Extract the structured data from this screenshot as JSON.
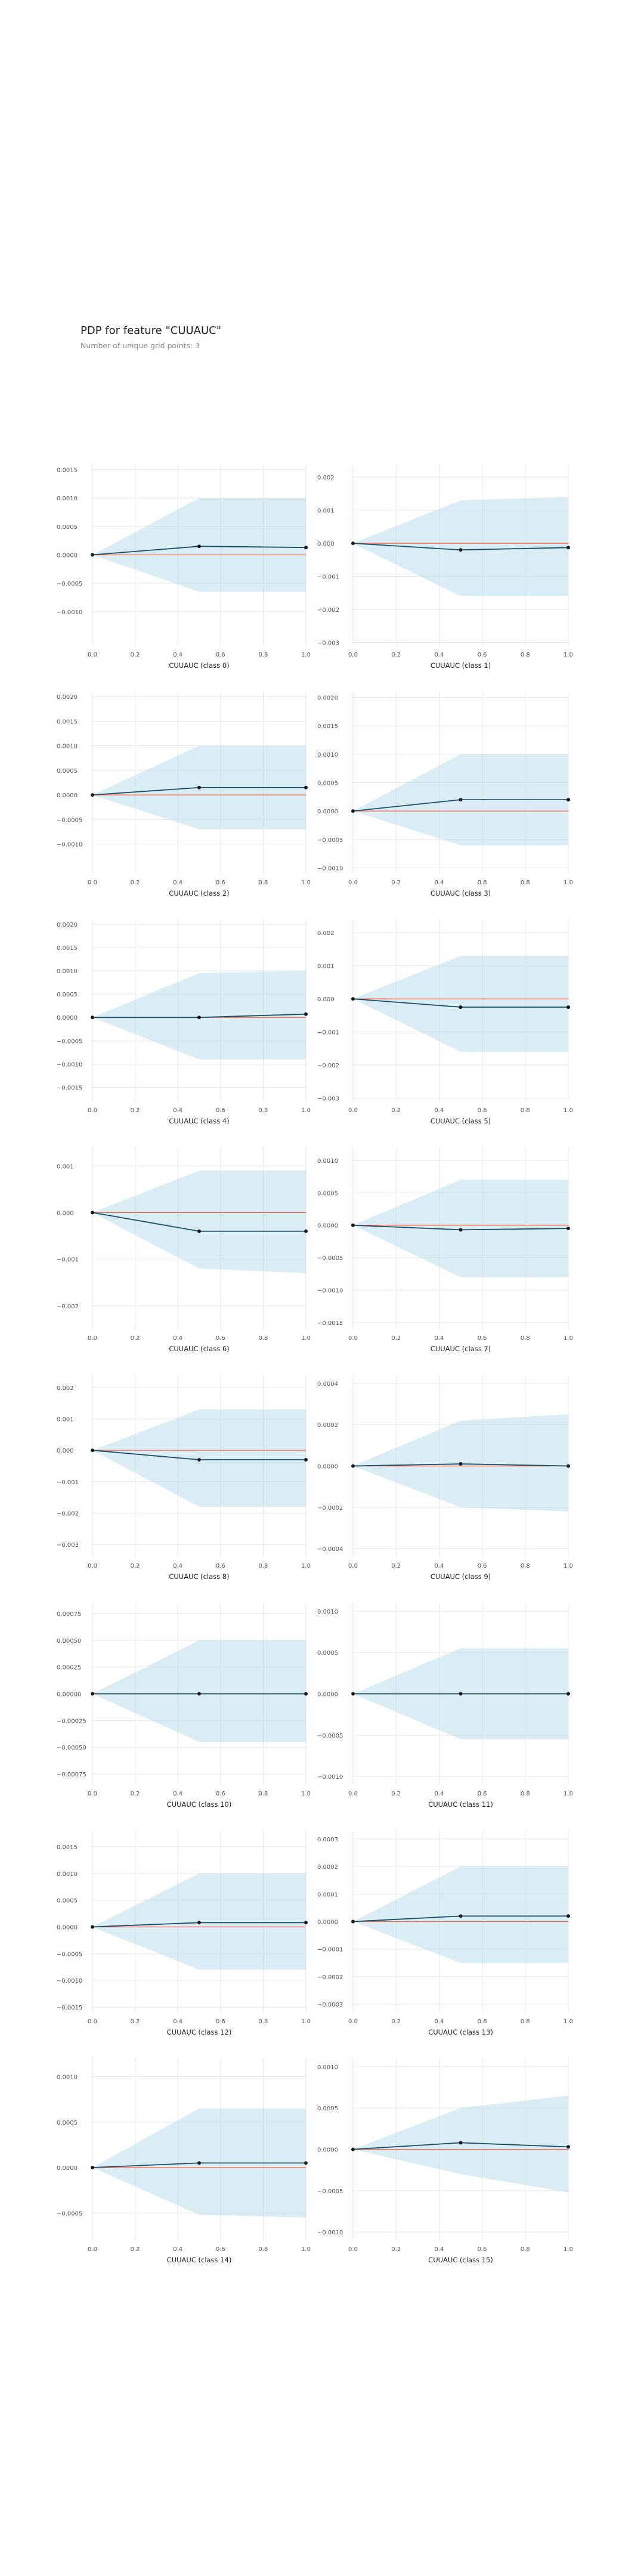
{
  "header": {
    "title": "PDP for feature \"CUUAUC\"",
    "subtitle": "Number of unique grid points: 3"
  },
  "colors": {
    "band": "#add8e6",
    "line": "#1a4e66",
    "marker": "#1a1a1a",
    "baseline": "#ff6347",
    "grid": "#e6e6e6"
  },
  "chart_data": [
    {
      "type": "line",
      "xlabel": "CUUAUC (class 0)",
      "x": [
        0,
        0.5,
        1
      ],
      "values": [
        0,
        0.00015,
        0.00013
      ],
      "upper": [
        0,
        0.001,
        0.001
      ],
      "lower": [
        0,
        -0.00065,
        -0.00065
      ],
      "ylim": [
        -0.0016,
        0.0016
      ],
      "xticks": [
        "0.0",
        "0.2",
        "0.4",
        "0.6",
        "0.8",
        "1.0"
      ],
      "yticks": [
        -0.001,
        -0.0005,
        0,
        0.0005,
        0.001,
        0.0015
      ],
      "yticklabels": [
        "−0.0010",
        "−0.0005",
        "0.0000",
        "0.0005",
        "0.0010",
        "0.0015"
      ],
      "baseline_visible": true
    },
    {
      "type": "line",
      "xlabel": "CUUAUC (class 1)",
      "x": [
        0,
        0.5,
        1
      ],
      "values": [
        0,
        -0.0002,
        -0.00013
      ],
      "upper": [
        0,
        0.0013,
        0.0014
      ],
      "lower": [
        0,
        -0.0016,
        -0.0016
      ],
      "ylim": [
        -0.0031,
        0.0024
      ],
      "xticks": [
        "0.0",
        "0.2",
        "0.4",
        "0.6",
        "0.8",
        "1.0"
      ],
      "yticks": [
        -0.003,
        -0.002,
        -0.001,
        0,
        0.001,
        0.002
      ],
      "yticklabels": [
        "−0.003",
        "−0.002",
        "−0.001",
        "0.000",
        "0.001",
        "0.002"
      ],
      "baseline_visible": true
    },
    {
      "type": "line",
      "xlabel": "CUUAUC (class 2)",
      "x": [
        0,
        0.5,
        1
      ],
      "values": [
        0,
        0.00015,
        0.00015
      ],
      "upper": [
        0,
        0.001,
        0.001
      ],
      "lower": [
        0,
        -0.0007,
        -0.0007
      ],
      "ylim": [
        -0.0016,
        0.0021
      ],
      "xticks": [
        "0.0",
        "0.2",
        "0.4",
        "0.6",
        "0.8",
        "1.0"
      ],
      "yticks": [
        -0.001,
        -0.0005,
        0,
        0.0005,
        0.001,
        0.0015,
        0.002
      ],
      "yticklabels": [
        "−0.0010",
        "−0.0005",
        "0.0000",
        "0.0005",
        "0.0010",
        "0.0015",
        "0.0020"
      ],
      "baseline_visible": true
    },
    {
      "type": "line",
      "xlabel": "CUUAUC (class 3)",
      "x": [
        0,
        0.5,
        1
      ],
      "values": [
        0,
        0.0002,
        0.0002
      ],
      "upper": [
        0,
        0.001,
        0.001
      ],
      "lower": [
        0,
        -0.0006,
        -0.0006
      ],
      "ylim": [
        -0.0011,
        0.0021
      ],
      "xticks": [
        "0.0",
        "0.2",
        "0.4",
        "0.6",
        "0.8",
        "1.0"
      ],
      "yticks": [
        -0.001,
        -0.0005,
        0,
        0.0005,
        0.001,
        0.0015,
        0.002
      ],
      "yticklabels": [
        "−0.0010",
        "−0.0005",
        "0.0000",
        "0.0005",
        "0.0010",
        "0.0015",
        "0.0020"
      ],
      "baseline_visible": true
    },
    {
      "type": "line",
      "xlabel": "CUUAUC (class 4)",
      "x": [
        0,
        0.5,
        1
      ],
      "values": [
        0,
        0,
        7e-05
      ],
      "upper": [
        0,
        0.00095,
        0.001
      ],
      "lower": [
        0,
        -0.0009,
        -0.0009
      ],
      "ylim": [
        -0.0018,
        0.0021
      ],
      "xticks": [
        "0.0",
        "0.2",
        "0.4",
        "0.6",
        "0.8",
        "1.0"
      ],
      "yticks": [
        -0.0015,
        -0.001,
        -0.0005,
        0,
        0.0005,
        0.001,
        0.0015,
        0.002
      ],
      "yticklabels": [
        "−0.0015",
        "−0.0010",
        "−0.0005",
        "0.0000",
        "0.0005",
        "0.0010",
        "0.0015",
        "0.0020"
      ],
      "baseline_visible": true
    },
    {
      "type": "line",
      "xlabel": "CUUAUC (class 5)",
      "x": [
        0,
        0.5,
        1
      ],
      "values": [
        0,
        -0.00025,
        -0.00025
      ],
      "upper": [
        0,
        0.0013,
        0.0013
      ],
      "lower": [
        0,
        -0.0016,
        -0.0016
      ],
      "ylim": [
        -0.0031,
        0.0024
      ],
      "xticks": [
        "0.0",
        "0.2",
        "0.4",
        "0.6",
        "0.8",
        "1.0"
      ],
      "yticks": [
        -0.003,
        -0.002,
        -0.001,
        0,
        0.001,
        0.002
      ],
      "yticklabels": [
        "−0.003",
        "−0.002",
        "−0.001",
        "0.000",
        "0.001",
        "0.002"
      ],
      "baseline_visible": true
    },
    {
      "type": "line",
      "xlabel": "CUUAUC (class 6)",
      "x": [
        0,
        0.5,
        1
      ],
      "values": [
        0,
        -0.0004,
        -0.0004
      ],
      "upper": [
        0,
        0.0009,
        0.0009
      ],
      "lower": [
        0,
        -0.0012,
        -0.0013
      ],
      "ylim": [
        -0.0025,
        0.0014
      ],
      "xticks": [
        "0.0",
        "0.2",
        "0.4",
        "0.6",
        "0.8",
        "1.0"
      ],
      "yticks": [
        -0.002,
        -0.001,
        0,
        0.001
      ],
      "yticklabels": [
        "−0.002",
        "−0.001",
        "0.000",
        "0.001"
      ],
      "baseline_visible": true
    },
    {
      "type": "line",
      "xlabel": "CUUAUC (class 7)",
      "x": [
        0,
        0.5,
        1
      ],
      "values": [
        0,
        -7e-05,
        -5e-05
      ],
      "upper": [
        0,
        0.0007,
        0.0007
      ],
      "lower": [
        0,
        -0.0008,
        -0.0008
      ],
      "ylim": [
        -0.0016,
        0.0012
      ],
      "xticks": [
        "0.0",
        "0.2",
        "0.4",
        "0.6",
        "0.8",
        "1.0"
      ],
      "yticks": [
        -0.0015,
        -0.001,
        -0.0005,
        0,
        0.0005,
        0.001
      ],
      "yticklabels": [
        "−0.0015",
        "−0.0010",
        "−0.0005",
        "0.0000",
        "0.0005",
        "0.0010"
      ],
      "baseline_visible": true
    },
    {
      "type": "line",
      "xlabel": "CUUAUC (class 8)",
      "x": [
        0,
        0.5,
        1
      ],
      "values": [
        0,
        -0.0003,
        -0.0003
      ],
      "upper": [
        0,
        0.0013,
        0.0013
      ],
      "lower": [
        0,
        -0.0018,
        -0.0018
      ],
      "ylim": [
        -0.0034,
        0.0024
      ],
      "xticks": [
        "0.0",
        "0.2",
        "0.4",
        "0.6",
        "0.8",
        "1.0"
      ],
      "yticks": [
        -0.003,
        -0.002,
        -0.001,
        0,
        0.001,
        0.002
      ],
      "yticklabels": [
        "−0.003",
        "−0.002",
        "−0.001",
        "0.000",
        "0.001",
        "0.002"
      ],
      "baseline_visible": true
    },
    {
      "type": "line",
      "xlabel": "CUUAUC (class 9)",
      "x": [
        0,
        0.5,
        1
      ],
      "values": [
        0,
        1e-05,
        0
      ],
      "upper": [
        0,
        0.00022,
        0.00025
      ],
      "lower": [
        0,
        -0.0002,
        -0.00022
      ],
      "ylim": [
        -0.00044,
        0.00044
      ],
      "xticks": [
        "0.0",
        "0.2",
        "0.4",
        "0.6",
        "0.8",
        "1.0"
      ],
      "yticks": [
        -0.0004,
        -0.0002,
        0,
        0.0002,
        0.0004
      ],
      "yticklabels": [
        "−0.0004",
        "−0.0002",
        "0.0000",
        "0.0002",
        "0.0004"
      ],
      "baseline_visible": true
    },
    {
      "type": "line",
      "xlabel": "CUUAUC (class 10)",
      "x": [
        0,
        0.5,
        1
      ],
      "values": [
        0,
        0,
        0
      ],
      "upper": [
        0,
        0.0005,
        0.0005
      ],
      "lower": [
        0,
        -0.00045,
        -0.00045
      ],
      "ylim": [
        -0.00085,
        0.00085
      ],
      "xticks": [
        "0.0",
        "0.2",
        "0.4",
        "0.6",
        "0.8",
        "1.0"
      ],
      "yticks": [
        -0.00075,
        -0.0005,
        -0.00025,
        0,
        0.00025,
        0.0005,
        0.00075
      ],
      "yticklabels": [
        "−0.00075",
        "−0.00050",
        "−0.00025",
        "0.00000",
        "0.00025",
        "0.00050",
        "0.00075"
      ],
      "baseline_visible": true
    },
    {
      "type": "line",
      "xlabel": "CUUAUC (class 11)",
      "x": [
        0,
        0.5,
        1
      ],
      "values": [
        0,
        0,
        0
      ],
      "upper": [
        0,
        0.00055,
        0.00055
      ],
      "lower": [
        0,
        -0.00055,
        -0.00055
      ],
      "ylim": [
        -0.0011,
        0.0011
      ],
      "xticks": [
        "0.0",
        "0.2",
        "0.4",
        "0.6",
        "0.8",
        "1.0"
      ],
      "yticks": [
        -0.001,
        -0.0005,
        0,
        0.0005,
        0.001
      ],
      "yticklabels": [
        "−0.0010",
        "−0.0005",
        "0.0000",
        "0.0005",
        "0.0010"
      ],
      "baseline_visible": true
    },
    {
      "type": "line",
      "xlabel": "CUUAUC (class 12)",
      "x": [
        0,
        0.5,
        1
      ],
      "values": [
        0,
        8e-05,
        8e-05
      ],
      "upper": [
        0,
        0.001,
        0.001
      ],
      "lower": [
        0,
        -0.0008,
        -0.0008
      ],
      "ylim": [
        -0.0016,
        0.0018
      ],
      "xticks": [
        "0.0",
        "0.2",
        "0.4",
        "0.6",
        "0.8",
        "1.0"
      ],
      "yticks": [
        -0.0015,
        -0.001,
        -0.0005,
        0,
        0.0005,
        0.001,
        0.0015
      ],
      "yticklabels": [
        "−0.0015",
        "−0.0010",
        "−0.0005",
        "0.0000",
        "0.0005",
        "0.0010",
        "0.0015"
      ],
      "baseline_visible": true
    },
    {
      "type": "line",
      "xlabel": "CUUAUC (class 13)",
      "x": [
        0,
        0.5,
        1
      ],
      "values": [
        0,
        2e-05,
        2e-05
      ],
      "upper": [
        0,
        0.0002,
        0.0002
      ],
      "lower": [
        0,
        -0.00015,
        -0.00015
      ],
      "ylim": [
        -0.00033,
        0.00033
      ],
      "xticks": [
        "0.0",
        "0.2",
        "0.4",
        "0.6",
        "0.8",
        "1.0"
      ],
      "yticks": [
        -0.0003,
        -0.0002,
        -0.0001,
        0,
        0.0001,
        0.0002,
        0.0003
      ],
      "yticklabels": [
        "−0.0003",
        "−0.0002",
        "−0.0001",
        "0.0000",
        "0.0001",
        "0.0002",
        "0.0003"
      ],
      "baseline_visible": true
    },
    {
      "type": "line",
      "xlabel": "CUUAUC (class 14)",
      "x": [
        0,
        0.5,
        1
      ],
      "values": [
        0,
        5e-05,
        5e-05
      ],
      "upper": [
        0,
        0.00065,
        0.00065
      ],
      "lower": [
        0,
        -0.00052,
        -0.00055
      ],
      "ylim": [
        -0.0008,
        0.0012
      ],
      "xticks": [
        "0.0",
        "0.2",
        "0.4",
        "0.6",
        "0.8",
        "1.0"
      ],
      "yticks": [
        -0.0005,
        0,
        0.0005,
        0.001
      ],
      "yticklabels": [
        "−0.0005",
        "0.0000",
        "0.0005",
        "0.0010"
      ],
      "baseline_visible": true
    },
    {
      "type": "line",
      "xlabel": "CUUAUC (class 15)",
      "x": [
        0,
        0.5,
        1
      ],
      "values": [
        0,
        8e-05,
        3e-05
      ],
      "upper": [
        0,
        0.0005,
        0.00065
      ],
      "lower": [
        0,
        -0.0003,
        -0.00052
      ],
      "ylim": [
        -0.0011,
        0.0011
      ],
      "xticks": [
        "0.0",
        "0.2",
        "0.4",
        "0.6",
        "0.8",
        "1.0"
      ],
      "yticks": [
        -0.001,
        -0.0005,
        0,
        0.0005,
        0.001
      ],
      "yticklabels": [
        "−0.0010",
        "−0.0005",
        "0.0000",
        "0.0005",
        "0.0010"
      ],
      "baseline_visible": true
    }
  ]
}
